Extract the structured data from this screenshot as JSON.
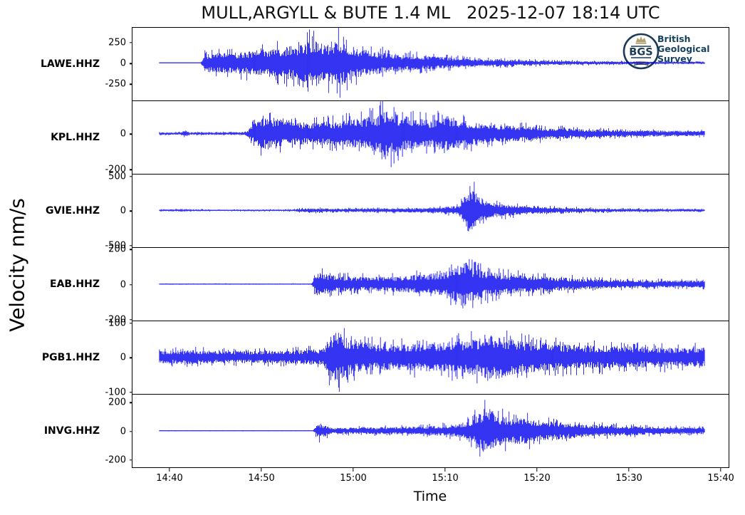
{
  "title": "MULL,ARGYLL & BUTE 1.4 ML   2025-12-07 18:14 UTC",
  "colors": {
    "trace": "#0000ee",
    "frame": "#000000",
    "logo_navy": "#1b3a55",
    "logo_text": "#16425f",
    "logo_tan": "#b3a271"
  },
  "logo": {
    "abbr": "BGS",
    "lines": [
      "British",
      "Geological",
      "Survey"
    ]
  },
  "chart_data": {
    "type": "line",
    "title": "MULL,ARGYLL & BUTE 1.4 ML   2025-12-07 18:14 UTC",
    "xlabel": "Time",
    "ylabel": "Velocity nm/s",
    "legend": "none",
    "grid": false,
    "x_ticks": [
      {
        "label": "14:40",
        "t": 0.0632
      },
      {
        "label": "14:50",
        "t": 0.217
      },
      {
        "label": "15:00",
        "t": 0.3707
      },
      {
        "label": "15:10",
        "t": 0.5245
      },
      {
        "label": "15:20",
        "t": 0.6782
      },
      {
        "label": "15:30",
        "t": 0.832
      },
      {
        "label": "15:40",
        "t": 0.9857
      }
    ],
    "traces": [
      {
        "station": "LAWE.HHZ",
        "yticks": [
          250,
          0,
          -250
        ],
        "ylim": [
          -460,
          430
        ],
        "envelope": [
          [
            0.045,
            5
          ],
          [
            0.115,
            6
          ],
          [
            0.122,
            160
          ],
          [
            0.16,
            170
          ],
          [
            0.2,
            200
          ],
          [
            0.24,
            240
          ],
          [
            0.285,
            300
          ],
          [
            0.3,
            400
          ],
          [
            0.33,
            330
          ],
          [
            0.345,
            430
          ],
          [
            0.36,
            300
          ],
          [
            0.4,
            200
          ],
          [
            0.45,
            140
          ],
          [
            0.5,
            110
          ],
          [
            0.55,
            80
          ],
          [
            0.585,
            55
          ],
          [
            0.61,
            65
          ],
          [
            0.64,
            50
          ],
          [
            0.7,
            35
          ],
          [
            0.8,
            25
          ],
          [
            0.9,
            18
          ],
          [
            0.96,
            18
          ]
        ]
      },
      {
        "station": "KPL.HHZ",
        "yticks": [
          0,
          -200
        ],
        "ylim": [
          -230,
          185
        ],
        "envelope": [
          [
            0.045,
            9
          ],
          [
            0.082,
            10
          ],
          [
            0.088,
            32
          ],
          [
            0.095,
            10
          ],
          [
            0.19,
            12
          ],
          [
            0.212,
            110
          ],
          [
            0.23,
            130
          ],
          [
            0.26,
            90
          ],
          [
            0.3,
            85
          ],
          [
            0.34,
            95
          ],
          [
            0.38,
            115
          ],
          [
            0.41,
            140
          ],
          [
            0.425,
            205
          ],
          [
            0.44,
            150
          ],
          [
            0.47,
            120
          ],
          [
            0.5,
            105
          ],
          [
            0.53,
            140
          ],
          [
            0.56,
            95
          ],
          [
            0.6,
            75
          ],
          [
            0.65,
            60
          ],
          [
            0.7,
            45
          ],
          [
            0.75,
            35
          ],
          [
            0.8,
            28
          ],
          [
            0.85,
            25
          ],
          [
            0.9,
            22
          ],
          [
            0.96,
            20
          ]
        ]
      },
      {
        "station": "GVIE.HHZ",
        "yticks": [
          500,
          0,
          -500
        ],
        "ylim": [
          -545,
          530
        ],
        "envelope": [
          [
            0.045,
            16
          ],
          [
            0.07,
            24
          ],
          [
            0.1,
            18
          ],
          [
            0.14,
            15
          ],
          [
            0.2,
            15
          ],
          [
            0.27,
            18
          ],
          [
            0.29,
            45
          ],
          [
            0.33,
            38
          ],
          [
            0.37,
            35
          ],
          [
            0.41,
            40
          ],
          [
            0.45,
            42
          ],
          [
            0.49,
            48
          ],
          [
            0.52,
            60
          ],
          [
            0.548,
            95
          ],
          [
            0.558,
            300
          ],
          [
            0.566,
            490
          ],
          [
            0.578,
            340
          ],
          [
            0.59,
            210
          ],
          [
            0.61,
            140
          ],
          [
            0.64,
            100
          ],
          [
            0.68,
            70
          ],
          [
            0.73,
            50
          ],
          [
            0.8,
            35
          ],
          [
            0.88,
            28
          ],
          [
            0.96,
            25
          ]
        ]
      },
      {
        "station": "EAB.HHZ",
        "yticks": [
          200,
          0,
          -200
        ],
        "ylim": [
          -212,
          210
        ],
        "envelope": [
          [
            0.045,
            4
          ],
          [
            0.3,
            4
          ],
          [
            0.308,
            90
          ],
          [
            0.33,
            75
          ],
          [
            0.36,
            60
          ],
          [
            0.4,
            55
          ],
          [
            0.44,
            62
          ],
          [
            0.47,
            70
          ],
          [
            0.5,
            80
          ],
          [
            0.53,
            100
          ],
          [
            0.545,
            150
          ],
          [
            0.554,
            195
          ],
          [
            0.567,
            140
          ],
          [
            0.59,
            110
          ],
          [
            0.62,
            85
          ],
          [
            0.66,
            65
          ],
          [
            0.7,
            55
          ],
          [
            0.75,
            45
          ],
          [
            0.8,
            35
          ],
          [
            0.85,
            30
          ],
          [
            0.9,
            28
          ],
          [
            0.96,
            30
          ]
        ]
      },
      {
        "station": "PGB1.HHZ",
        "yticks": [
          100,
          0,
          -100
        ],
        "ylim": [
          -109,
          106
        ],
        "envelope": [
          [
            0.045,
            24
          ],
          [
            0.1,
            28
          ],
          [
            0.15,
            25
          ],
          [
            0.2,
            24
          ],
          [
            0.27,
            28
          ],
          [
            0.32,
            32
          ],
          [
            0.332,
            92
          ],
          [
            0.345,
            100
          ],
          [
            0.37,
            65
          ],
          [
            0.4,
            55
          ],
          [
            0.44,
            50
          ],
          [
            0.48,
            55
          ],
          [
            0.52,
            60
          ],
          [
            0.55,
            65
          ],
          [
            0.58,
            72
          ],
          [
            0.597,
            98
          ],
          [
            0.615,
            85
          ],
          [
            0.64,
            70
          ],
          [
            0.67,
            60
          ],
          [
            0.7,
            55
          ],
          [
            0.75,
            48
          ],
          [
            0.8,
            45
          ],
          [
            0.85,
            42
          ],
          [
            0.9,
            40
          ],
          [
            0.96,
            38
          ]
        ]
      },
      {
        "station": "INVG.HHZ",
        "yticks": [
          200,
          0,
          -200
        ],
        "ylim": [
          -260,
          257
        ],
        "envelope": [
          [
            0.045,
            4
          ],
          [
            0.303,
            4
          ],
          [
            0.312,
            78
          ],
          [
            0.322,
            60
          ],
          [
            0.335,
            30
          ],
          [
            0.38,
            32
          ],
          [
            0.42,
            35
          ],
          [
            0.46,
            38
          ],
          [
            0.5,
            45
          ],
          [
            0.54,
            60
          ],
          [
            0.565,
            95
          ],
          [
            0.585,
            185
          ],
          [
            0.596,
            235
          ],
          [
            0.61,
            165
          ],
          [
            0.63,
            125
          ],
          [
            0.655,
            130
          ],
          [
            0.68,
            105
          ],
          [
            0.71,
            90
          ],
          [
            0.74,
            72
          ],
          [
            0.78,
            55
          ],
          [
            0.83,
            45
          ],
          [
            0.88,
            38
          ],
          [
            0.93,
            32
          ],
          [
            0.96,
            30
          ]
        ]
      }
    ]
  }
}
